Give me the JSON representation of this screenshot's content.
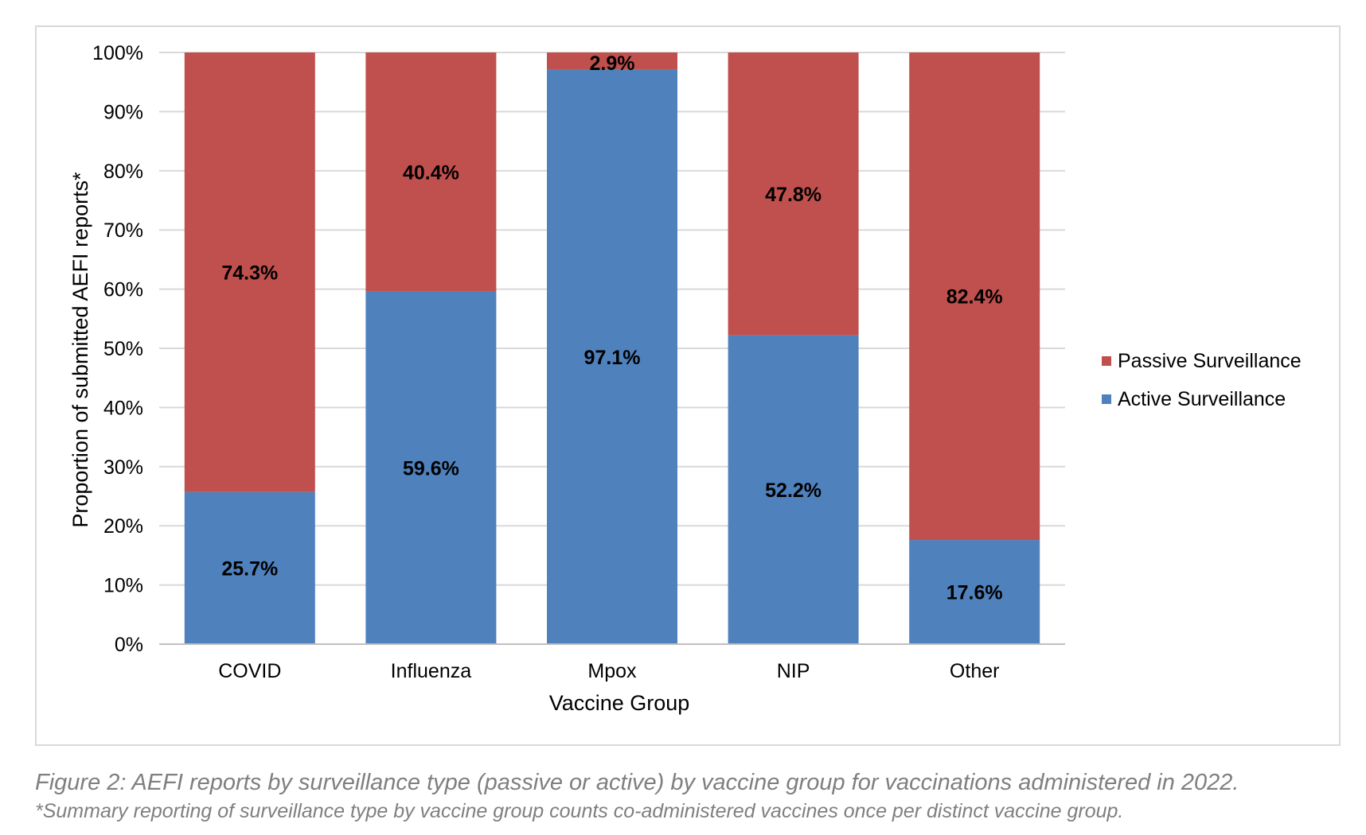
{
  "chart_data": {
    "type": "bar",
    "stacked": true,
    "categories": [
      "COVID",
      "Influenza",
      "Mpox",
      "NIP",
      "Other"
    ],
    "series": [
      {
        "name": "Active Surveillance",
        "color": "#4f81bd",
        "values": [
          25.7,
          59.6,
          97.1,
          52.2,
          17.6
        ],
        "labels": [
          "25.7%",
          "59.6%",
          "97.1%",
          "52.2%",
          "17.6%"
        ]
      },
      {
        "name": "Passive Surveillance",
        "color": "#c0504d",
        "values": [
          74.3,
          40.4,
          2.9,
          47.8,
          82.4
        ],
        "labels": [
          "74.3%",
          "40.4%",
          "2.9%",
          "47.8%",
          "82.4%"
        ]
      }
    ],
    "xlabel": "Vaccine Group",
    "ylabel": "Proportion of submitted AEFI reports*",
    "ylim": [
      0,
      100
    ],
    "yticks": [
      "0%",
      "10%",
      "20%",
      "30%",
      "40%",
      "50%",
      "60%",
      "70%",
      "80%",
      "90%",
      "100%"
    ],
    "grid": true,
    "legend": {
      "placement": "right",
      "entries": [
        "Passive Surveillance",
        "Active Surveillance"
      ]
    }
  },
  "caption": {
    "line1": "Figure 2: AEFI reports by surveillance type (passive or active) by vaccine group for vaccinations administered in 2022.",
    "line2": "*Summary reporting of surveillance type by vaccine group counts co-administered vaccines once per distinct vaccine group."
  },
  "colors": {
    "grid": "#d9d9d9",
    "axis": "#bfbfbf",
    "text": "#000000",
    "caption": "#7f7f7f"
  }
}
